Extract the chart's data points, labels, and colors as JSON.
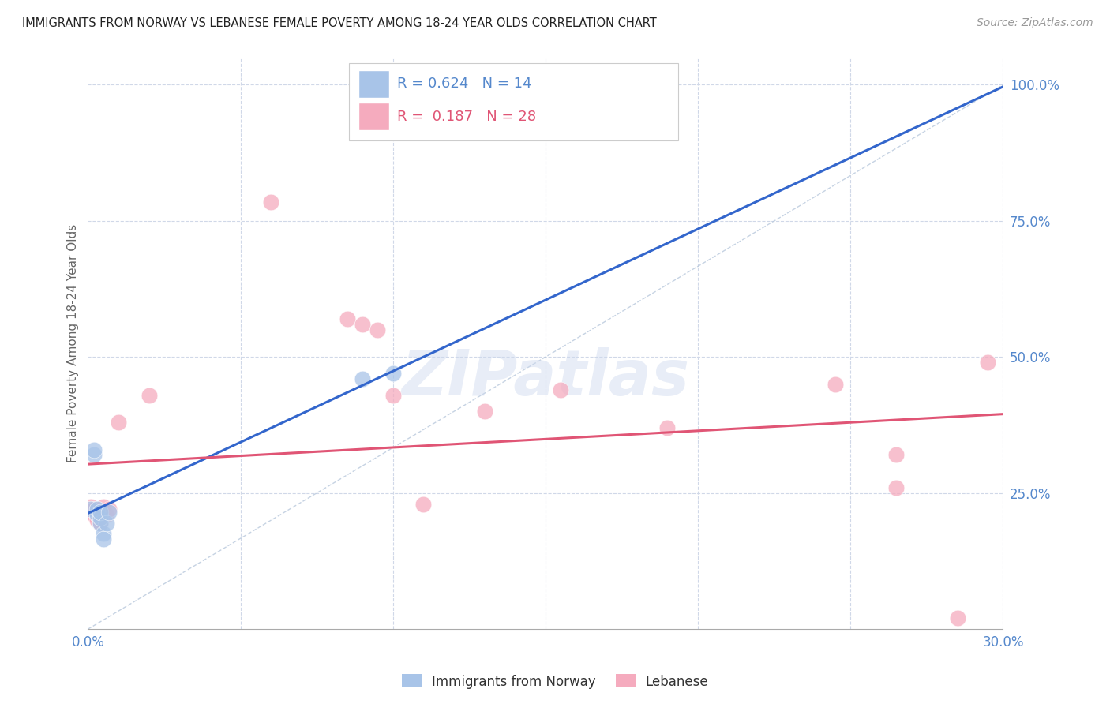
{
  "title": "IMMIGRANTS FROM NORWAY VS LEBANESE FEMALE POVERTY AMONG 18-24 YEAR OLDS CORRELATION CHART",
  "source": "Source: ZipAtlas.com",
  "ylabel": "Female Poverty Among 18-24 Year Olds",
  "xlim": [
    0.0,
    0.3
  ],
  "ylim": [
    0.0,
    1.05
  ],
  "norway_R": 0.624,
  "norway_N": 14,
  "lebanese_R": 0.187,
  "lebanese_N": 28,
  "norway_color": "#a8c4e8",
  "lebanese_color": "#f5abbe",
  "norway_line_color": "#3366cc",
  "lebanese_line_color": "#e05575",
  "diagonal_color": "#b8c8dc",
  "grid_color": "#d0d8e8",
  "tick_color": "#5588cc",
  "title_color": "#222222",
  "ylabel_color": "#666666",
  "background_color": "#ffffff",
  "norway_x": [
    0.001,
    0.002,
    0.002,
    0.003,
    0.003,
    0.004,
    0.004,
    0.004,
    0.005,
    0.005,
    0.006,
    0.007,
    0.09,
    0.1
  ],
  "norway_y": [
    0.22,
    0.32,
    0.33,
    0.21,
    0.22,
    0.195,
    0.205,
    0.215,
    0.175,
    0.165,
    0.195,
    0.215,
    0.46,
    0.47
  ],
  "lebanese_x": [
    0.001,
    0.001,
    0.002,
    0.002,
    0.003,
    0.003,
    0.004,
    0.004,
    0.005,
    0.005,
    0.006,
    0.007,
    0.01,
    0.02,
    0.06,
    0.085,
    0.09,
    0.095,
    0.1,
    0.11,
    0.13,
    0.155,
    0.19,
    0.245,
    0.265,
    0.285,
    0.295,
    0.265
  ],
  "lebanese_y": [
    0.215,
    0.225,
    0.21,
    0.22,
    0.2,
    0.21,
    0.195,
    0.205,
    0.215,
    0.225,
    0.21,
    0.22,
    0.38,
    0.43,
    0.785,
    0.57,
    0.56,
    0.55,
    0.43,
    0.23,
    0.4,
    0.44,
    0.37,
    0.45,
    0.32,
    0.02,
    0.49,
    0.26
  ],
  "watermark_text": "ZIPatlas",
  "legend_entries": [
    "Immigrants from Norway",
    "Lebanese"
  ]
}
